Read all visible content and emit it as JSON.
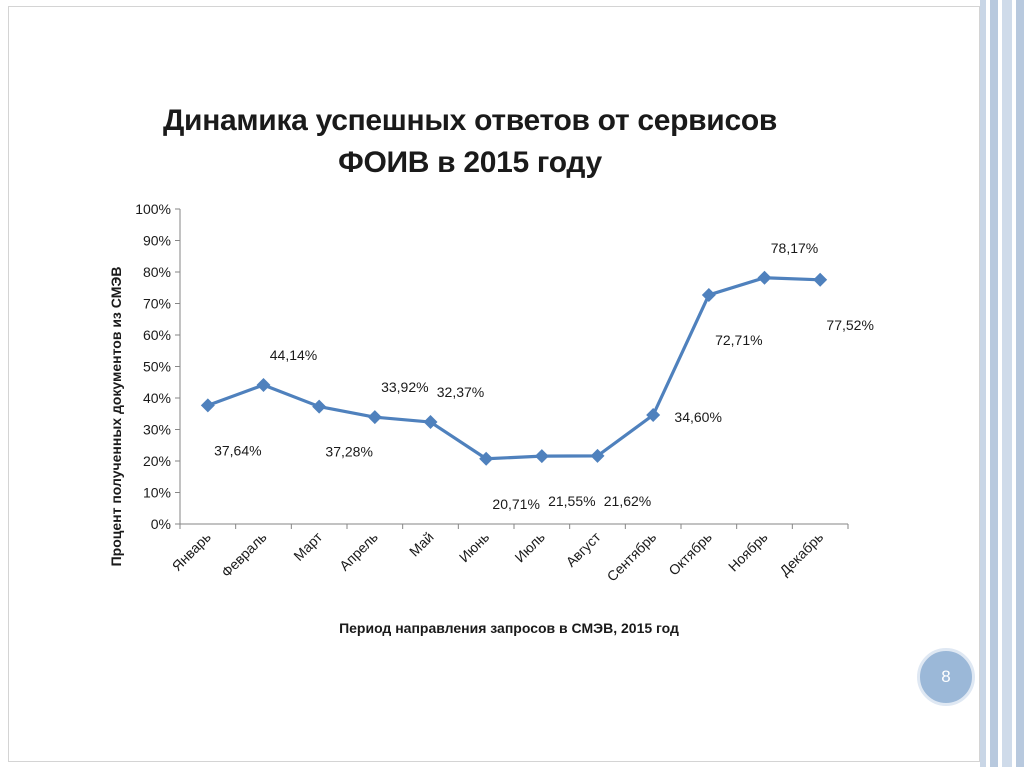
{
  "slide": {
    "page_number": "8"
  },
  "colors": {
    "series": "#4F81BD",
    "axis": "#868686",
    "text": "#1a1a1a",
    "page_badge": "#9bb8d8"
  },
  "chart_data": {
    "type": "line",
    "title_line1": "Динамика успешных ответов от сервисов",
    "title_line2": "ФОИВ в 2015 году",
    "xlabel": "Период направления запросов в СМЭВ, 2015 год",
    "ylabel": "Процент полученных документов из СМЭВ",
    "ylim": [
      0,
      100
    ],
    "yticks": [
      "0%",
      "10%",
      "20%",
      "30%",
      "40%",
      "50%",
      "60%",
      "70%",
      "80%",
      "90%",
      "100%"
    ],
    "categories": [
      "Январь",
      "Февраль",
      "Март",
      "Апрель",
      "Май",
      "Июнь",
      "Июль",
      "Август",
      "Сентябрь",
      "Октябрь",
      "Ноябрь",
      "Декабрь"
    ],
    "values": [
      37.64,
      44.14,
      37.28,
      33.92,
      32.37,
      20.71,
      21.55,
      21.62,
      34.6,
      72.71,
      78.17,
      77.52
    ],
    "data_labels": [
      "37,64%",
      "44,14%",
      "37,28%",
      "33,92%",
      "32,37%",
      "20,71%",
      "21,55%",
      "21,62%",
      "34,60%",
      "72,71%",
      "78,17%",
      "77,52%"
    ],
    "grid": false,
    "legend": "none",
    "marker": "diamond"
  }
}
